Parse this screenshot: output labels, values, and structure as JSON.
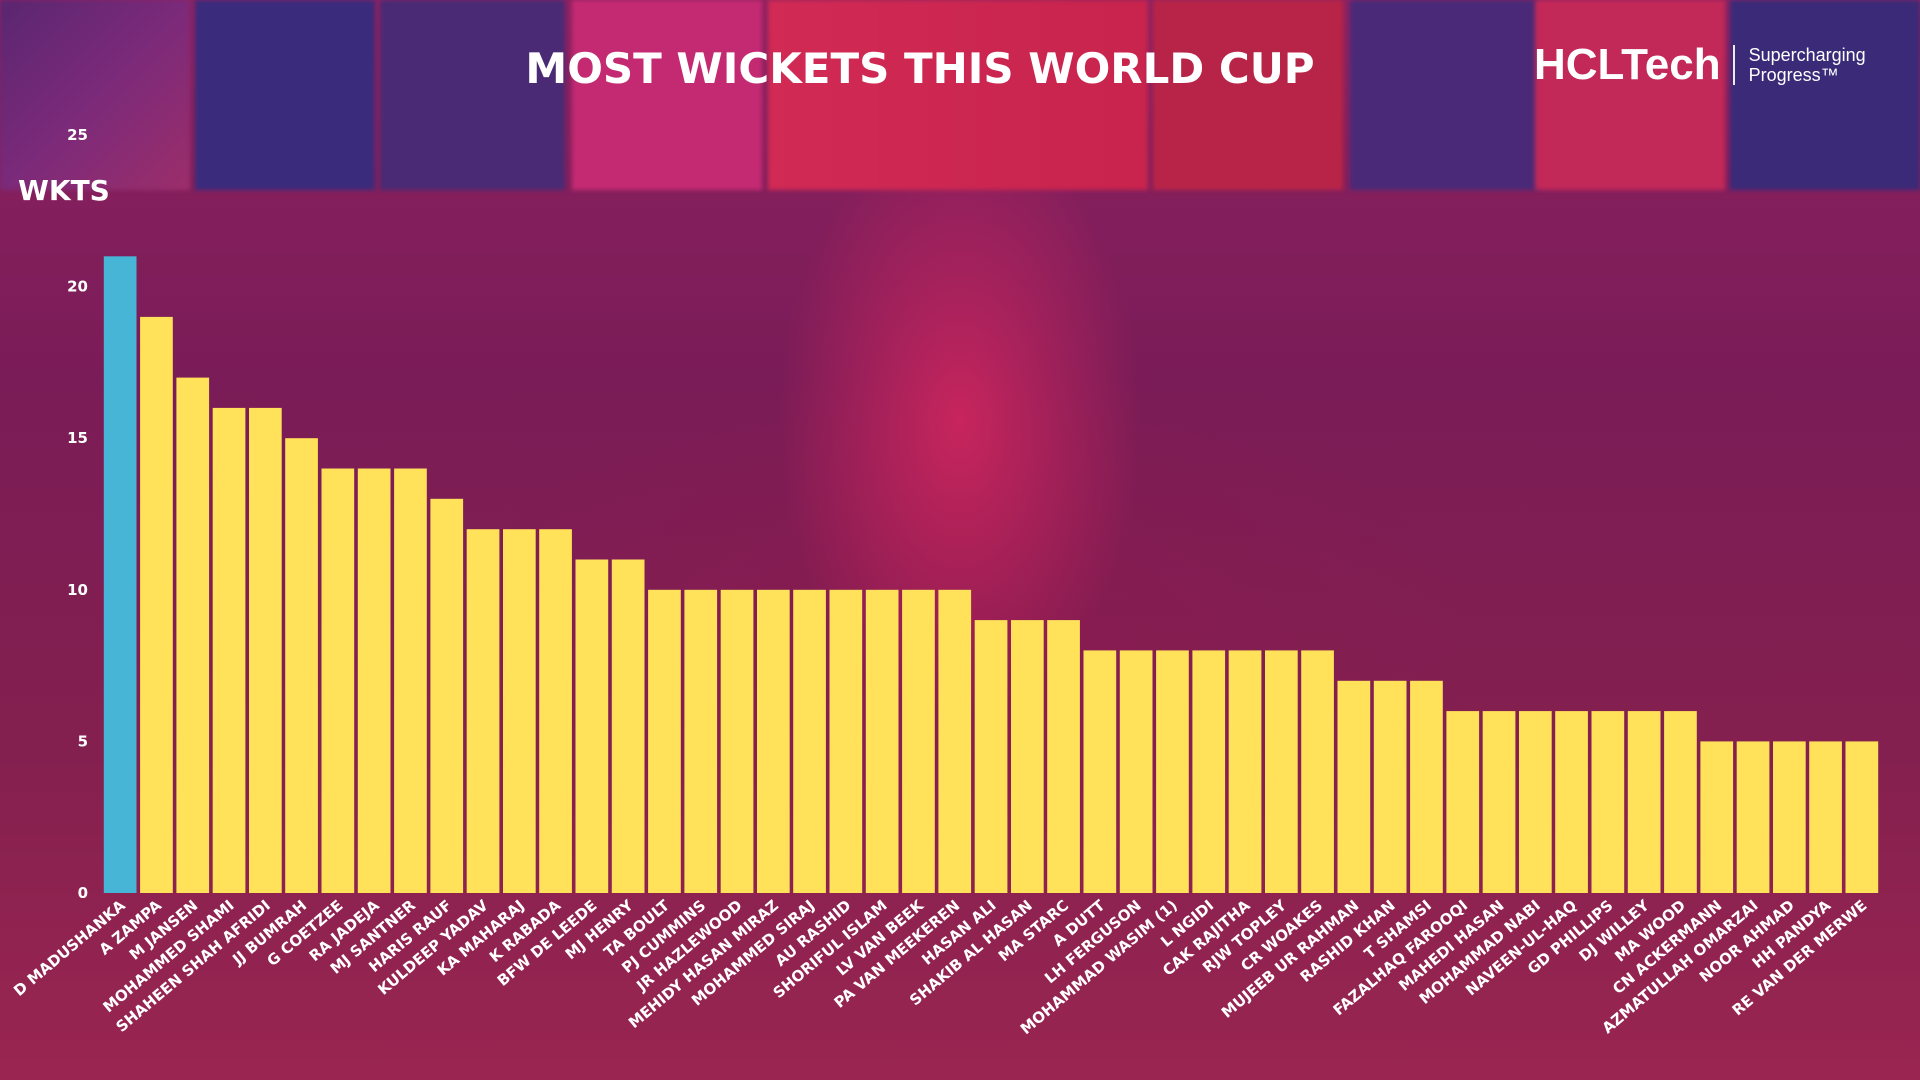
{
  "header": {
    "title": "MOST WICKETS THIS WORLD CUP",
    "brand_name": "HCLTech",
    "brand_tag_line1": "Supercharging",
    "brand_tag_line2": "Progress™"
  },
  "colors": {
    "highlight": "#47b6d6",
    "bar": "#ffe15a",
    "background": "#7a1d55",
    "text": "#ffffff"
  },
  "chart_data": {
    "type": "bar",
    "title": "MOST WICKETS THIS WORLD CUP",
    "xlabel": "",
    "ylabel": "WKTS",
    "ylim": [
      0,
      25
    ],
    "yticks": [
      0,
      5,
      10,
      15,
      20,
      25
    ],
    "grid": false,
    "highlight_index": 0,
    "categories": [
      "D MADUSHANKA",
      "A ZAMPA",
      "M JANSEN",
      "MOHAMMED SHAMI",
      "SHAHEEN SHAH AFRIDI",
      "JJ BUMRAH",
      "G COETZEE",
      "RA JADEJA",
      "MJ SANTNER",
      "HARIS RAUF",
      "KULDEEP YADAV",
      "KA MAHARAJ",
      "K RABADA",
      "BFW DE LEEDE",
      "MJ HENRY",
      "TA BOULT",
      "PJ CUMMINS",
      "JR HAZLEWOOD",
      "MEHIDY HASAN MIRAZ",
      "MOHAMMED SIRAJ",
      "AU RASHID",
      "SHORIFUL ISLAM",
      "LV VAN BEEK",
      "PA VAN MEEKEREN",
      "HASAN ALI",
      "SHAKIB AL HASAN",
      "MA STARC",
      "A DUTT",
      "LH FERGUSON",
      "MOHAMMAD WASIM (1)",
      "L NGIDI",
      "CAK RAJITHA",
      "RJW TOPLEY",
      "CR WOAKES",
      "MUJEEB UR RAHMAN",
      "RASHID KHAN",
      "T SHAMSI",
      "FAZALHAQ FAROOQI",
      "MAHEDI HASAN",
      "MOHAMMAD NABI",
      "NAVEEN-UL-HAQ",
      "GD PHILLIPS",
      "DJ WILLEY",
      "MA WOOD",
      "CN ACKERMANN",
      "AZMATULLAH OMARZAI",
      "NOOR AHMAD",
      "HH PANDYA",
      "RE VAN DER MERWE"
    ],
    "values": [
      21,
      19,
      17,
      16,
      16,
      15,
      14,
      14,
      14,
      13,
      12,
      12,
      12,
      11,
      11,
      10,
      10,
      10,
      10,
      10,
      10,
      10,
      10,
      10,
      9,
      9,
      9,
      8,
      8,
      8,
      8,
      8,
      8,
      8,
      7,
      7,
      7,
      6,
      6,
      6,
      6,
      6,
      6,
      6,
      5,
      5,
      5,
      5,
      5
    ]
  }
}
